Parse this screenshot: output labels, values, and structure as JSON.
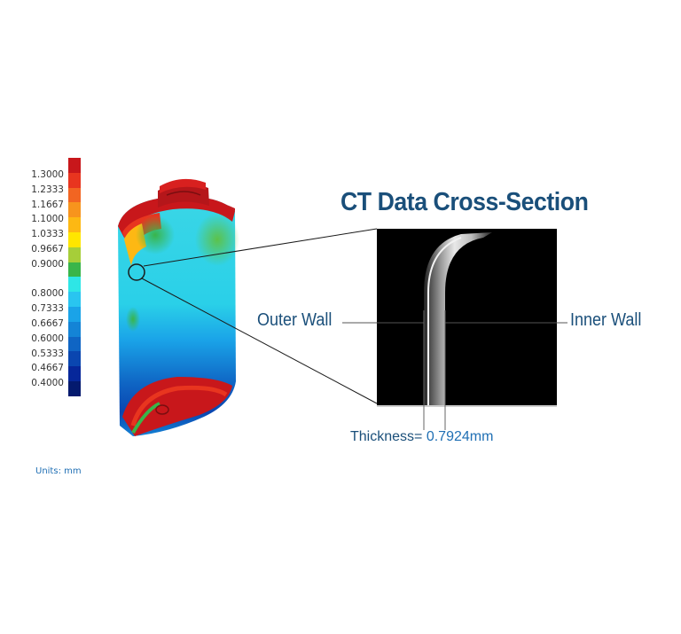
{
  "title": "CT Data Cross-Section",
  "labels": {
    "outer_wall": "Outer Wall",
    "inner_wall": "Inner Wall",
    "thickness_prefix": "Thickness=",
    "thickness_value": "0.7924mm"
  },
  "legend": {
    "units": "Units: mm",
    "entries": [
      {
        "value": "1.3000",
        "color": "#c8171b"
      },
      {
        "value": "1.2333",
        "color": "#e8351f"
      },
      {
        "value": "1.1667",
        "color": "#f26522"
      },
      {
        "value": "1.1000",
        "color": "#f7941d"
      },
      {
        "value": "1.0333",
        "color": "#fdb813"
      },
      {
        "value": "0.9667",
        "color": "#ffe600"
      },
      {
        "value": "0.9000",
        "color": "#a6ce39"
      },
      {
        "value": "",
        "color": "#39b54a"
      },
      {
        "value": "0.8000",
        "color": "#2ee6e6"
      },
      {
        "value": "0.7333",
        "color": "#29c5f0"
      },
      {
        "value": "0.6667",
        "color": "#1aa3e8"
      },
      {
        "value": "0.6000",
        "color": "#1484d6"
      },
      {
        "value": "0.5333",
        "color": "#0f65c4"
      },
      {
        "value": "0.4667",
        "color": "#0a46b0"
      },
      {
        "value": "0.4000",
        "color": "#06279a"
      },
      {
        "value": "",
        "color": "#041a6e"
      }
    ]
  }
}
